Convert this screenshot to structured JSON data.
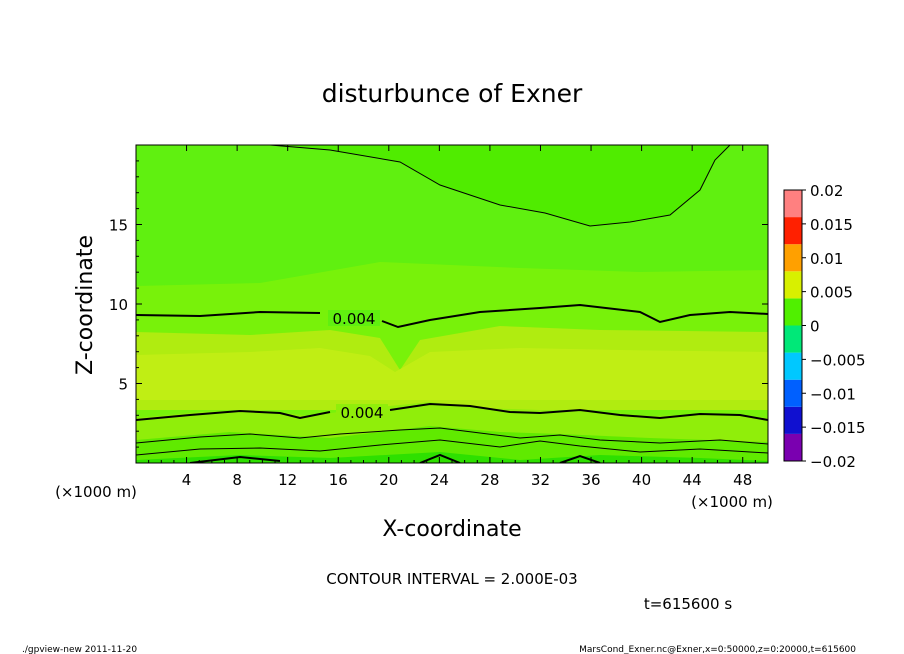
{
  "chart_data": {
    "type": "heatmap",
    "title": "disturbunce of Exner",
    "xlabel": "X-coordinate",
    "ylabel": "Z-coordinate",
    "xlim": [
      0,
      50
    ],
    "ylim": [
      0,
      20
    ],
    "x_ticks": [
      4,
      8,
      12,
      16,
      20,
      24,
      28,
      32,
      36,
      40,
      44,
      48
    ],
    "x_tick_labels": [
      "4",
      "8",
      "12",
      "16",
      "20",
      "24",
      "28",
      "32",
      "36",
      "40",
      "44",
      "48"
    ],
    "y_ticks": [
      5,
      10,
      15
    ],
    "y_tick_labels": [
      "5",
      "10",
      "15"
    ],
    "x_unit_label": "(×1000 m)",
    "y_unit_label": "(×1000 m)",
    "colorbar": {
      "levels": [
        -0.02,
        -0.015,
        -0.01,
        -0.005,
        0,
        0.005,
        0.01,
        0.015,
        0.02
      ],
      "labels": [
        "0.02",
        "0.015",
        "0.01",
        "0.005",
        "0",
        "−0.005",
        "−0.01",
        "−0.015",
        "−0.02"
      ],
      "colors": [
        "#7a00b0",
        "#1010d0",
        "#0060ff",
        "#00c8ff",
        "#00e878",
        "#50f000",
        "#d8f000",
        "#ffa000",
        "#ff2000",
        "#ff8080"
      ]
    },
    "contour_labels": [
      "0.004",
      "0.004"
    ],
    "contour_interval_text": "CONTOUR INTERVAL = 2.000E-03",
    "time_text": "t=615600 s",
    "footer_left": "./gpview-new  2011-11-20",
    "footer_right": "MarsCond_Exner.nc@Exner,x=0:50000,z=0:20000,t=615600"
  }
}
